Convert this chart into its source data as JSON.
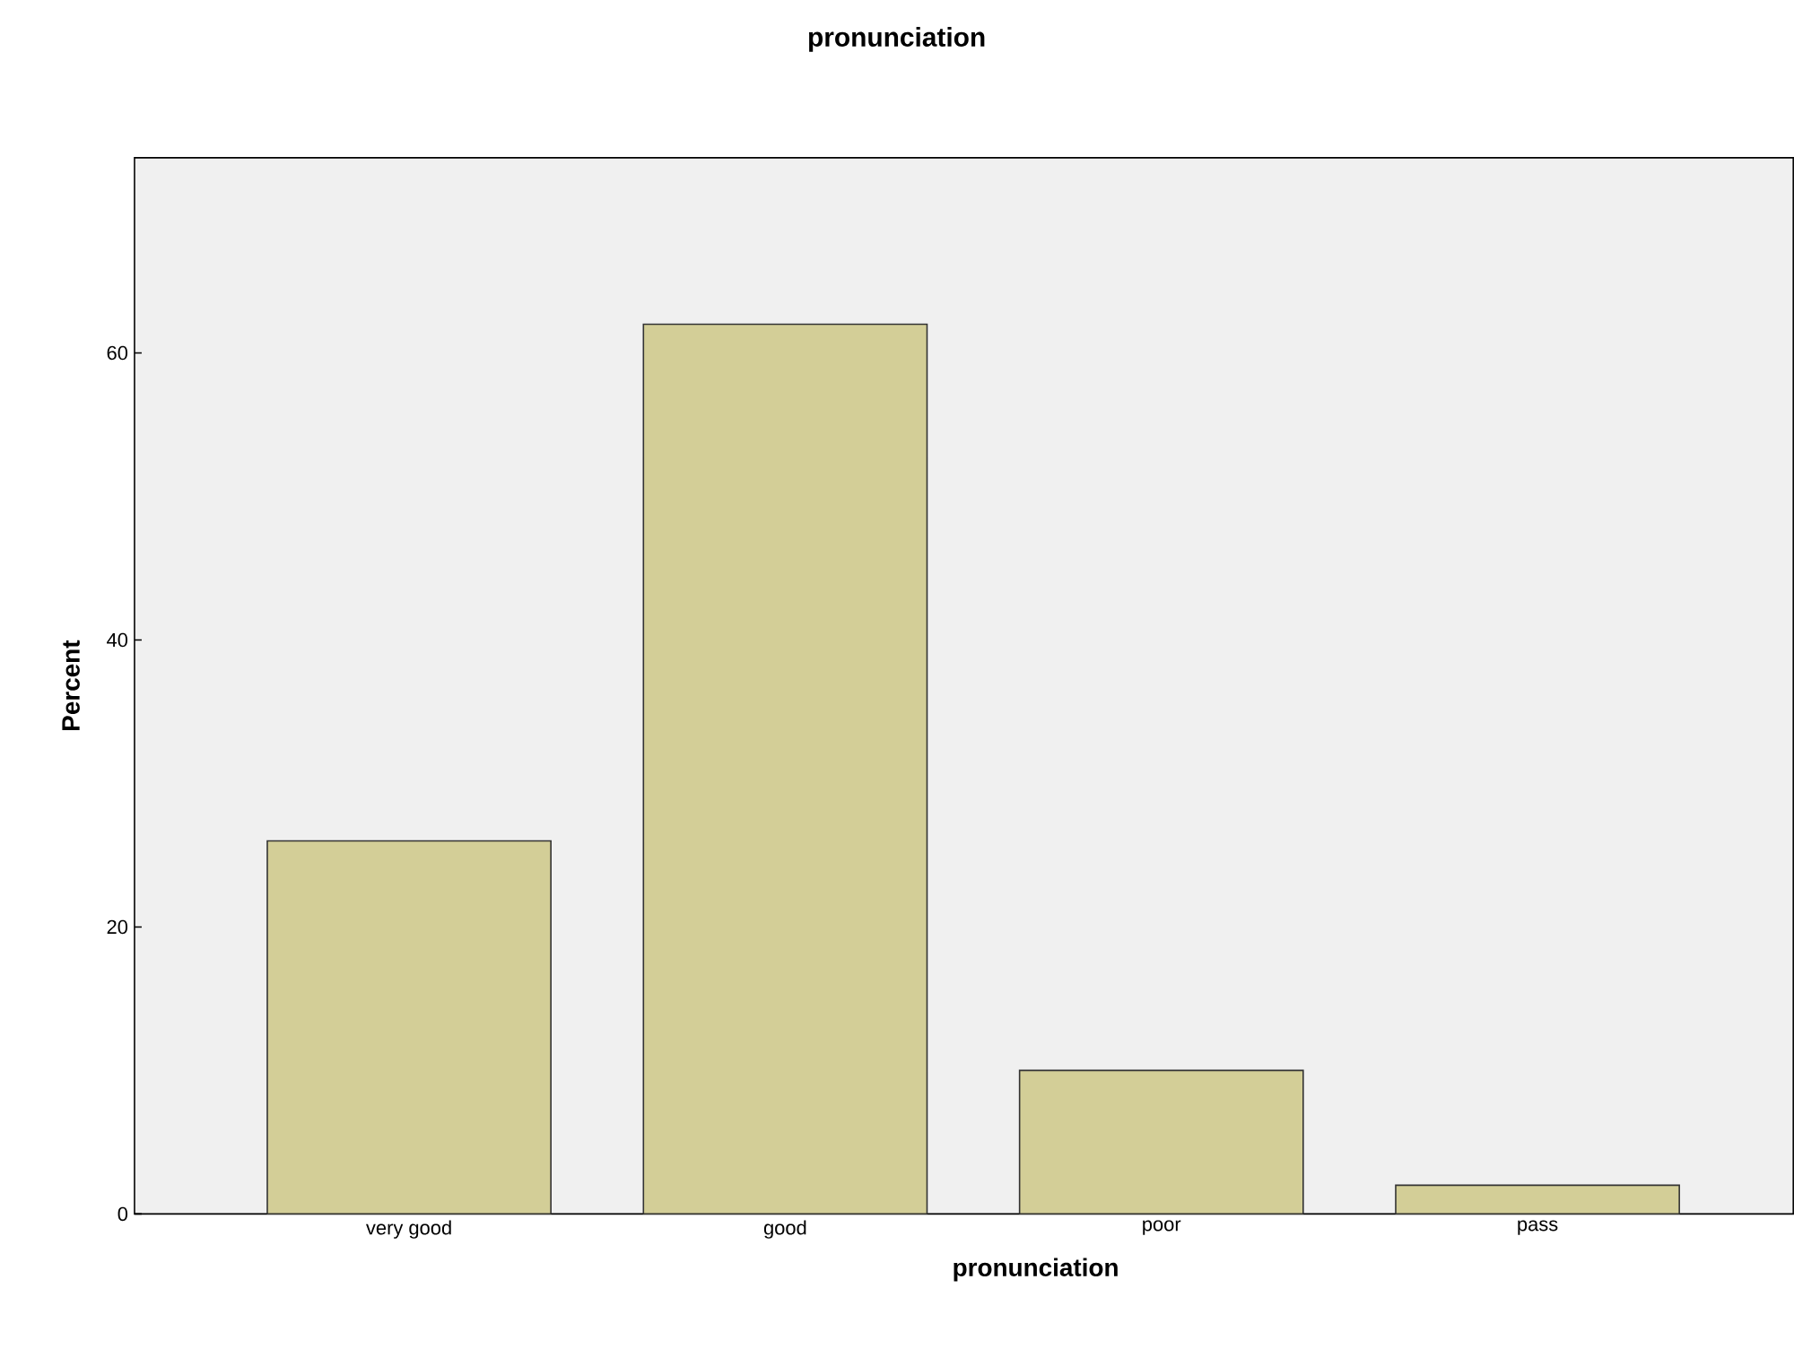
{
  "chart_data": {
    "type": "bar",
    "title": "pronunciation",
    "xlabel": "pronunciation",
    "ylabel": "Percent",
    "categories": [
      "very good",
      "good",
      "poor",
      "pass"
    ],
    "values": [
      26,
      62,
      10,
      2
    ],
    "color": "#d3ce97",
    "ylim": [
      0,
      73.6
    ],
    "yticks": [
      0,
      20,
      40,
      60
    ]
  }
}
